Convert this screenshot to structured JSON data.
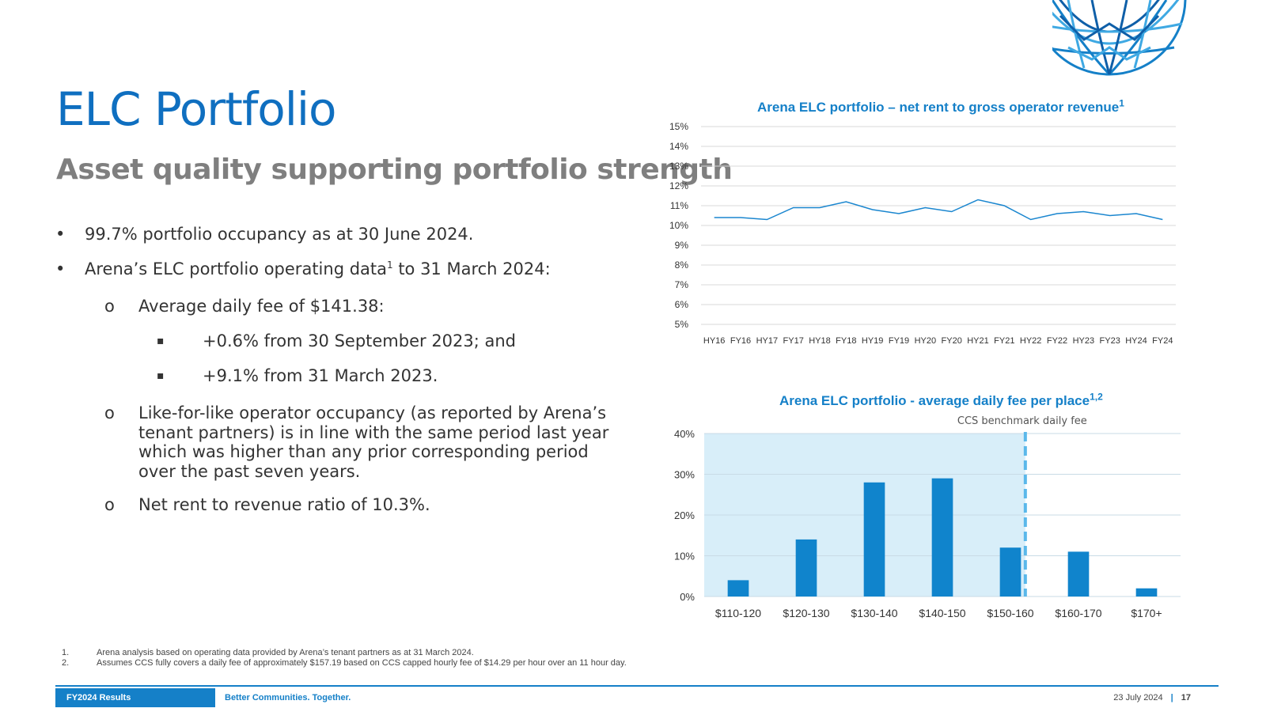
{
  "slide": {
    "title": "ELC Portfolio",
    "subtitle": "Asset quality supporting portfolio strength"
  },
  "bullets": {
    "b1": "99.7% portfolio occupancy as at 30 June 2024.",
    "b2_pre": "Arena’s ELC portfolio operating data",
    "b2_sup": "1",
    "b2_post": " to 31 March 2024:",
    "b2_1": "Average daily fee of $141.38:",
    "b2_1_1": "+0.6% from 30 September 2023; and",
    "b2_1_2": "+9.1% from 31 March 2023.",
    "b2_2": "Like-for-like operator occupancy (as reported by Arena’s tenant partners) is in line with the same period last year which was higher than any prior corresponding period over the past seven years.",
    "b2_3": "Net rent to revenue ratio of 10.3%.",
    "mark_level1": "•",
    "mark_level2": "o",
    "mark_level3": "▪"
  },
  "chart1_title": {
    "text": "Arena ELC portfolio – net rent to gross operator revenue",
    "sup": "1"
  },
  "chart2_title": {
    "text": "Arena ELC portfolio - average daily fee per place",
    "sup": "1,2"
  },
  "chart_data": [
    {
      "type": "line",
      "title": "Arena ELC portfolio – net rent to gross operator revenue",
      "x": [
        "HY16",
        "FY16",
        "HY17",
        "FY17",
        "HY18",
        "FY18",
        "HY19",
        "FY19",
        "HY20",
        "FY20",
        "HY21",
        "FY21",
        "HY22",
        "FY22",
        "HY23",
        "FY23",
        "HY24",
        "FY24"
      ],
      "series": [
        {
          "values": [
            10.4,
            10.4,
            10.3,
            10.9,
            10.9,
            11.2,
            10.8,
            10.6,
            10.9,
            10.7,
            11.3,
            11.0,
            10.3,
            10.6,
            10.7,
            10.5,
            10.6,
            10.3
          ]
        }
      ],
      "yticks": [
        "5%",
        "6%",
        "7%",
        "8%",
        "9%",
        "10%",
        "11%",
        "12%",
        "13%",
        "14%",
        "15%"
      ],
      "ylim": [
        5,
        15
      ],
      "grid": true,
      "color": "#1a86cf"
    },
    {
      "type": "bar",
      "title": "Arena ELC portfolio - average daily fee per place",
      "categories": [
        "$110-120",
        "$120-130",
        "$130-140",
        "$140-150",
        "$150-160",
        "$160-170",
        "$170+"
      ],
      "values": [
        4,
        14,
        28,
        29,
        12,
        11,
        2
      ],
      "yticks": [
        "0%",
        "10%",
        "20%",
        "30%",
        "40%"
      ],
      "ylim": [
        0,
        40
      ],
      "grid": true,
      "bar_color": "#1084cc",
      "shade_color": "#d8eef9",
      "benchmark": {
        "label": "CCS benchmark daily fee",
        "value": 157.19,
        "color": "#5ab8ea"
      }
    }
  ],
  "footnotes": [
    {
      "num": "1.",
      "text": "Arena analysis based on operating data provided by Arena’s tenant partners as at 31 March 2024."
    },
    {
      "num": "2.",
      "text": "Assumes CCS fully covers a daily fee of approximately $157.19 based on CCS capped hourly fee of $14.29 per hour over an 11 hour day."
    }
  ],
  "footer": {
    "left": "FY2024 Results",
    "tagline": "Better Communities. Together.",
    "date": "23 July 2024",
    "separator": "|",
    "page": "17"
  },
  "colors": {
    "brand_blue": "#1580c8",
    "title_blue": "#0f6fc0",
    "subtitle_grey": "#7f7f7f"
  },
  "icons": {
    "logo": "globe-logo-icon"
  }
}
